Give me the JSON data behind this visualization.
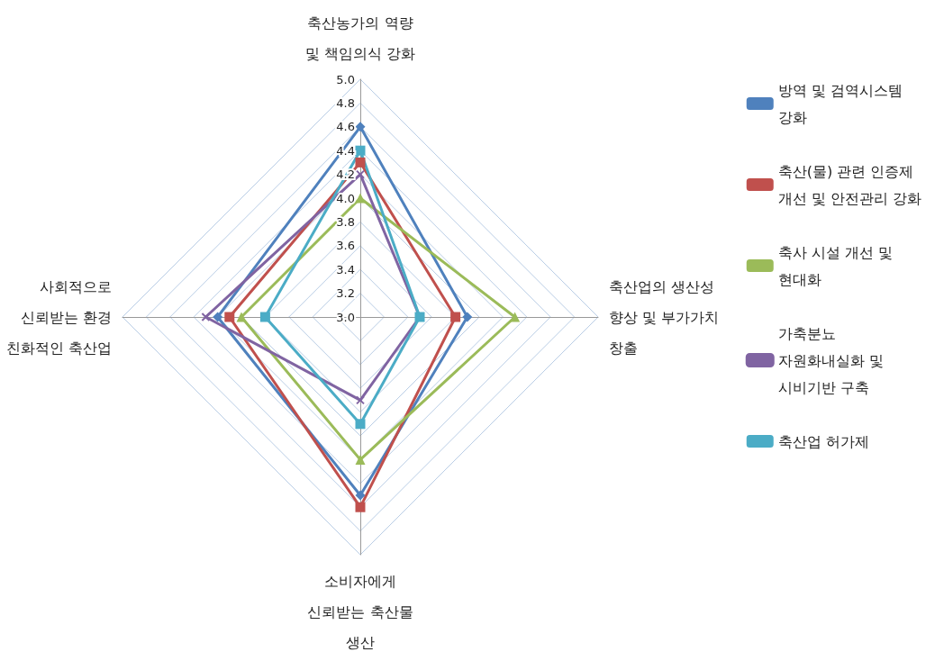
{
  "chart_data": {
    "type": "radar",
    "categories": [
      "축산농가의 역량\n및 책임의식 강화",
      "축산업의 생산성\n향상 및 부가가치\n창출",
      "소비자에게\n신뢰받는 축산물\n생산",
      "사회적으로\n신뢰받는 환경\n친화적인 축산업"
    ],
    "series": [
      {
        "name": "방역 및 검역시스템\n강화",
        "color": "#4f81bd",
        "marker": "diamond",
        "values": [
          4.6,
          3.9,
          4.5,
          4.2
        ]
      },
      {
        "name": "축산(물) 관련 인증제\n개선 및 안전관리 강화",
        "color": "#c0504d",
        "marker": "square",
        "values": [
          4.3,
          3.8,
          4.6,
          4.1
        ]
      },
      {
        "name": "축사 시설 개선 및\n현대화",
        "color": "#9bbb59",
        "marker": "triangle",
        "values": [
          4.0,
          4.3,
          4.2,
          4.0
        ]
      },
      {
        "name": "가축분뇨\n자원화내실화 및\n시비기반 구축",
        "color": "#8064a2",
        "marker": "cross",
        "values": [
          4.2,
          3.5,
          3.7,
          4.3
        ]
      },
      {
        "name": "축산업 허가제",
        "color": "#4bacc6",
        "marker": "square",
        "values": [
          4.4,
          3.5,
          3.9,
          3.8
        ]
      }
    ],
    "ylim": [
      3,
      5
    ],
    "yticks": [
      {
        "value": 3,
        "label": "3.0"
      },
      {
        "value": 3.2,
        "label": "3.2"
      },
      {
        "value": 3.4,
        "label": "3.4"
      },
      {
        "value": 3.6,
        "label": "3.6"
      },
      {
        "value": 3.8,
        "label": "3.8"
      },
      {
        "value": 4,
        "label": "4.0"
      },
      {
        "value": 4.2,
        "label": "4.2"
      },
      {
        "value": 4.4,
        "label": "4.4"
      },
      {
        "value": 4.6,
        "label": "4.6"
      },
      {
        "value": 4.8,
        "label": "4.8"
      },
      {
        "value": 5,
        "label": "5.0"
      }
    ],
    "grid": true,
    "legend": "right"
  }
}
